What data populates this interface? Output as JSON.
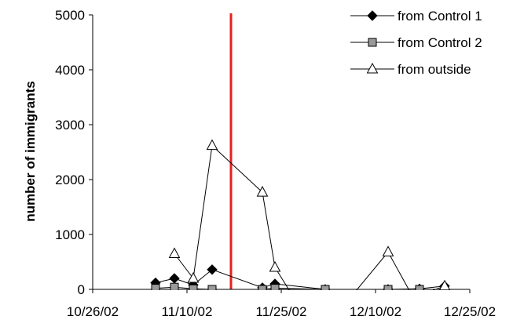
{
  "chart_data": {
    "type": "line",
    "title": "",
    "xlabel": "",
    "ylabel": "number of immigrants",
    "ylim": [
      0,
      5000
    ],
    "yticks": [
      "0",
      "1000",
      "2000",
      "3000",
      "4000",
      "5000"
    ],
    "xlim": [
      "2002-10-26",
      "2002-12-25"
    ],
    "xticks": [
      "10/26/02",
      "11/10/02",
      "11/25/02",
      "12/10/02",
      "12/25/02"
    ],
    "grid": false,
    "legend_position": "top-right",
    "vertical_line": {
      "x": "2002-11-17",
      "color": "#e8211b"
    },
    "series": [
      {
        "name": "from Control 1",
        "marker": "diamond",
        "color": "#000000",
        "points": [
          {
            "x": "2002-11-05",
            "y": 120
          },
          {
            "x": "2002-11-08",
            "y": 200
          },
          {
            "x": "2002-11-11",
            "y": 80
          },
          {
            "x": "2002-11-14",
            "y": 360
          },
          {
            "x": "2002-11-22",
            "y": 30
          },
          {
            "x": "2002-11-24",
            "y": 100
          },
          {
            "x": "2002-12-02",
            "y": 0
          },
          {
            "x": "2002-12-12",
            "y": 0
          },
          {
            "x": "2002-12-17",
            "y": 10
          },
          {
            "x": "2002-12-21",
            "y": 60
          }
        ]
      },
      {
        "name": "from Control 2",
        "marker": "square",
        "color": "#808080",
        "points": [
          {
            "x": "2002-11-05",
            "y": 20
          },
          {
            "x": "2002-11-08",
            "y": 40
          },
          {
            "x": "2002-11-11",
            "y": 10
          },
          {
            "x": "2002-11-14",
            "y": 0
          },
          {
            "x": "2002-11-22",
            "y": 0
          },
          {
            "x": "2002-11-24",
            "y": 20
          },
          {
            "x": "2002-12-02",
            "y": 0
          },
          {
            "x": "2002-12-12",
            "y": 0
          },
          {
            "x": "2002-12-17",
            "y": 0
          },
          {
            "x": "2002-12-21",
            "y": 0
          }
        ]
      },
      {
        "name": "from outside",
        "marker": "triangle",
        "color": "#000000",
        "points": [
          {
            "x": "2002-11-08",
            "y": 650
          },
          {
            "x": "2002-11-11",
            "y": 200
          },
          {
            "x": "2002-11-14",
            "y": 2620
          },
          {
            "x": "2002-11-22",
            "y": 1770
          },
          {
            "x": "2002-11-24",
            "y": 400
          },
          {
            "x": "2002-11-27",
            "y": -150
          },
          {
            "x": "2002-12-06",
            "y": -150
          },
          {
            "x": "2002-12-12",
            "y": 680
          },
          {
            "x": "2002-12-16",
            "y": -150
          },
          {
            "x": "2002-12-21",
            "y": 60
          }
        ]
      }
    ]
  }
}
